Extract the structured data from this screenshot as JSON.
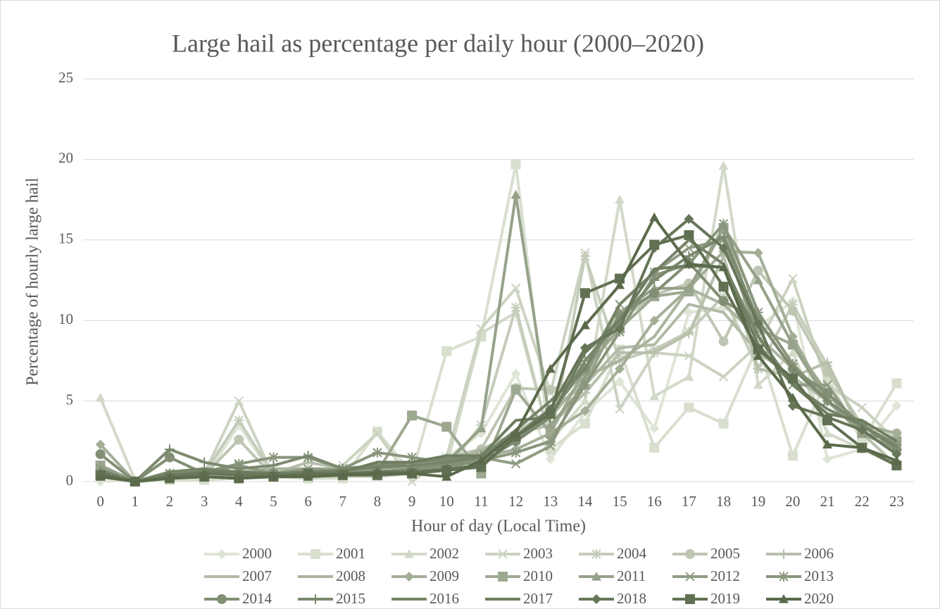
{
  "chart_data": {
    "type": "line",
    "title": "Large hail as percentage per daily hour (2000–2020)",
    "x_label": "Hour of day (Local Time)",
    "y_label": "Percentage of  hourly large hail",
    "categories": [
      "0",
      "1",
      "2",
      "3",
      "4",
      "5",
      "6",
      "7",
      "8",
      "9",
      "10",
      "11",
      "12",
      "13",
      "14",
      "15",
      "16",
      "17",
      "18",
      "19",
      "20",
      "21",
      "22",
      "23"
    ],
    "ylim": [
      0,
      25
    ],
    "yticks": [
      0,
      5,
      10,
      15,
      20,
      25
    ],
    "grid": true,
    "legend": "bottom",
    "series": [
      {
        "name": "2000",
        "color": "#dfe5d6",
        "marker": "diamond",
        "values": [
          0,
          0.1,
          0.3,
          0.2,
          3.5,
          0.3,
          0.3,
          0.4,
          0.5,
          0.8,
          1.5,
          3,
          6.7,
          1.4,
          4.3,
          6.2,
          3.3,
          10.5,
          10.8,
          9.6,
          11.2,
          1.4,
          2,
          4.7
        ]
      },
      {
        "name": "2001",
        "color": "#d8dfcf",
        "marker": "square",
        "values": [
          0.5,
          0,
          0.1,
          0.1,
          0.2,
          0.3,
          0.2,
          0.2,
          3.1,
          0.5,
          8.1,
          9,
          19.7,
          2,
          3.6,
          8.2,
          2.1,
          4.6,
          3.6,
          8.5,
          1.6,
          6.5,
          2.5,
          6.1
        ]
      },
      {
        "name": "2002",
        "color": "#d2d9c8",
        "marker": "triangle",
        "values": [
          5.2,
          0.1,
          0.3,
          0.3,
          0.4,
          0.3,
          0.2,
          0.3,
          0.3,
          0.5,
          1,
          9.2,
          10.5,
          2.5,
          5,
          17.5,
          5.3,
          6.5,
          19.6,
          6,
          8,
          3,
          2,
          1
        ]
      },
      {
        "name": "2003",
        "color": "#cbd3c1",
        "marker": "x",
        "values": [
          0.5,
          0,
          0.5,
          0.5,
          5,
          0.3,
          0.5,
          1,
          3,
          0,
          1.5,
          9.5,
          12,
          5.5,
          14.2,
          4.5,
          8,
          7.8,
          6.5,
          8.5,
          12.6,
          6,
          4.6,
          2.5
        ]
      },
      {
        "name": "2004",
        "color": "#c4ccba",
        "marker": "star",
        "values": [
          0.3,
          0,
          0.5,
          0.5,
          3.8,
          0.4,
          0.6,
          0.6,
          0.5,
          1,
          0.8,
          3.5,
          10.8,
          2.5,
          14,
          7.5,
          8.2,
          9.3,
          11.5,
          7,
          11,
          7.2,
          3,
          2.7
        ]
      },
      {
        "name": "2005",
        "color": "#bec6b3",
        "marker": "circle",
        "values": [
          0.8,
          0,
          0.3,
          0.4,
          2.6,
          0.3,
          0.5,
          0.4,
          0.5,
          0.7,
          1,
          2,
          5.8,
          5.7,
          6.5,
          10,
          11.6,
          12.3,
          8.7,
          13.1,
          10.6,
          6.8,
          3.5,
          3
        ]
      },
      {
        "name": "2006",
        "color": "#b7c0ac",
        "marker": "plus",
        "values": [
          0.4,
          0,
          0.4,
          0.5,
          1,
          0.5,
          1.2,
          0.8,
          0.8,
          1,
          1.5,
          2,
          3,
          3.5,
          5.5,
          8,
          8,
          9.2,
          14,
          7,
          6.5,
          7.4,
          3,
          1
        ]
      },
      {
        "name": "2007",
        "color": "#b0baa5",
        "marker": "none",
        "values": [
          0.5,
          0,
          0.4,
          0.5,
          0.6,
          0.6,
          0.6,
          0.7,
          0.8,
          1,
          1.2,
          1.8,
          3,
          4.5,
          6,
          8.3,
          8.5,
          11,
          10.5,
          8,
          6.5,
          5,
          3.5,
          2
        ]
      },
      {
        "name": "2008",
        "color": "#aab49e",
        "marker": "none",
        "values": [
          1,
          0,
          0.5,
          0.6,
          0.6,
          0.8,
          0.8,
          0.8,
          1,
          1.2,
          1,
          2,
          2.5,
          4,
          6.5,
          7.5,
          9,
          12,
          11,
          9,
          7,
          5,
          3,
          2
        ]
      },
      {
        "name": "2009",
        "color": "#a3ae97",
        "marker": "diamond",
        "values": [
          2.3,
          0,
          0.5,
          0.6,
          0.5,
          0.4,
          0.5,
          0.5,
          0.6,
          0.8,
          0.7,
          1.5,
          2,
          3,
          4.4,
          7,
          10,
          12,
          14.3,
          14.2,
          9,
          5,
          3.5,
          3
        ]
      },
      {
        "name": "2010",
        "color": "#9da891",
        "marker": "square",
        "values": [
          1,
          0,
          0.3,
          0.5,
          0.4,
          0.4,
          0.4,
          0.5,
          0.6,
          4.1,
          3.4,
          0.5,
          5.7,
          3,
          7,
          9.5,
          11.5,
          11.8,
          15.7,
          9.5,
          8.5,
          5.5,
          3,
          2.5
        ]
      },
      {
        "name": "2011",
        "color": "#96a18a",
        "marker": "triangle",
        "values": [
          1,
          0,
          0.5,
          0.6,
          0.5,
          0.5,
          0.5,
          0.6,
          0.8,
          1,
          1.2,
          3.3,
          17.8,
          3.5,
          6,
          10.5,
          12,
          12,
          15.8,
          12.5,
          8.5,
          5,
          3,
          2
        ]
      },
      {
        "name": "2012",
        "color": "#8f9b83",
        "marker": "x",
        "values": [
          0.8,
          0,
          0.5,
          0.5,
          1,
          0.5,
          0.8,
          0.7,
          0.8,
          1,
          1,
          1.5,
          1.1,
          2.2,
          6.5,
          11,
          13,
          14.5,
          15,
          9,
          6,
          6,
          3,
          2.5
        ]
      },
      {
        "name": "2013",
        "color": "#89957c",
        "marker": "star",
        "values": [
          0.5,
          0,
          0.5,
          0.6,
          1.1,
          1.5,
          1.5,
          0.8,
          1.8,
          1.5,
          1.2,
          1.3,
          1.8,
          2.5,
          6,
          9.3,
          12.8,
          13.5,
          16,
          10.5,
          7.3,
          5,
          3.5,
          2.3
        ]
      },
      {
        "name": "2014",
        "color": "#828f75",
        "marker": "circle",
        "values": [
          1.7,
          0,
          1.5,
          0.5,
          0.5,
          0.5,
          0.5,
          0.5,
          0.6,
          0.8,
          1,
          1.2,
          2.5,
          4.3,
          7,
          10.3,
          11.7,
          13.6,
          11.2,
          10,
          7,
          5.5,
          3.5,
          2
        ]
      },
      {
        "name": "2015",
        "color": "#7b896e",
        "marker": "plus",
        "values": [
          0.6,
          0,
          2,
          1.2,
          0.8,
          1,
          1.6,
          0.8,
          1,
          1.2,
          1.4,
          1.6,
          2.5,
          4,
          7.5,
          10,
          12.5,
          14,
          15.2,
          10,
          7,
          5,
          3.5,
          2
        ]
      },
      {
        "name": "2016",
        "color": "#758367",
        "marker": "none",
        "values": [
          0.7,
          0,
          0.6,
          0.8,
          0.6,
          0.5,
          0.6,
          0.7,
          0.9,
          1,
          1.2,
          1.5,
          3.2,
          5,
          7,
          11,
          13,
          15,
          13.5,
          9,
          6,
          4.5,
          3.5,
          2.2
        ]
      },
      {
        "name": "2017",
        "color": "#6e7d60",
        "marker": "none",
        "values": [
          0.5,
          0,
          0.4,
          0.6,
          0.6,
          0.5,
          0.5,
          0.6,
          1.2,
          1.2,
          1.6,
          1.6,
          3.8,
          4,
          8,
          10,
          13.2,
          13.4,
          13.3,
          8.5,
          6,
          4.2,
          3.8,
          2.5
        ]
      },
      {
        "name": "2018",
        "color": "#677659",
        "marker": "diamond",
        "values": [
          0.5,
          0,
          0.3,
          0.5,
          0.4,
          0.4,
          0.4,
          0.5,
          0.6,
          0.6,
          0.8,
          1,
          2.8,
          4.5,
          8.3,
          9.5,
          14.5,
          16.3,
          14.5,
          9.8,
          4.7,
          4,
          3.2,
          1.7
        ]
      },
      {
        "name": "2019",
        "color": "#617052",
        "marker": "square",
        "values": [
          0.4,
          0,
          0.2,
          0.3,
          0.2,
          0.3,
          0.5,
          0.4,
          0.4,
          0.5,
          0.7,
          0.9,
          2.8,
          4.2,
          11.7,
          12.6,
          14.7,
          15.3,
          12.1,
          8.2,
          6.4,
          3.8,
          2.1,
          1
        ]
      },
      {
        "name": "2020",
        "color": "#5a6a4b",
        "marker": "triangle",
        "values": [
          0.3,
          0,
          0.2,
          0.3,
          0.2,
          0.3,
          0.3,
          0.4,
          0.5,
          0.5,
          0.3,
          1.3,
          3,
          7,
          9.7,
          12.2,
          16.4,
          13.5,
          13.3,
          7.8,
          5.2,
          2.3,
          2.1,
          1.3
        ]
      }
    ]
  }
}
